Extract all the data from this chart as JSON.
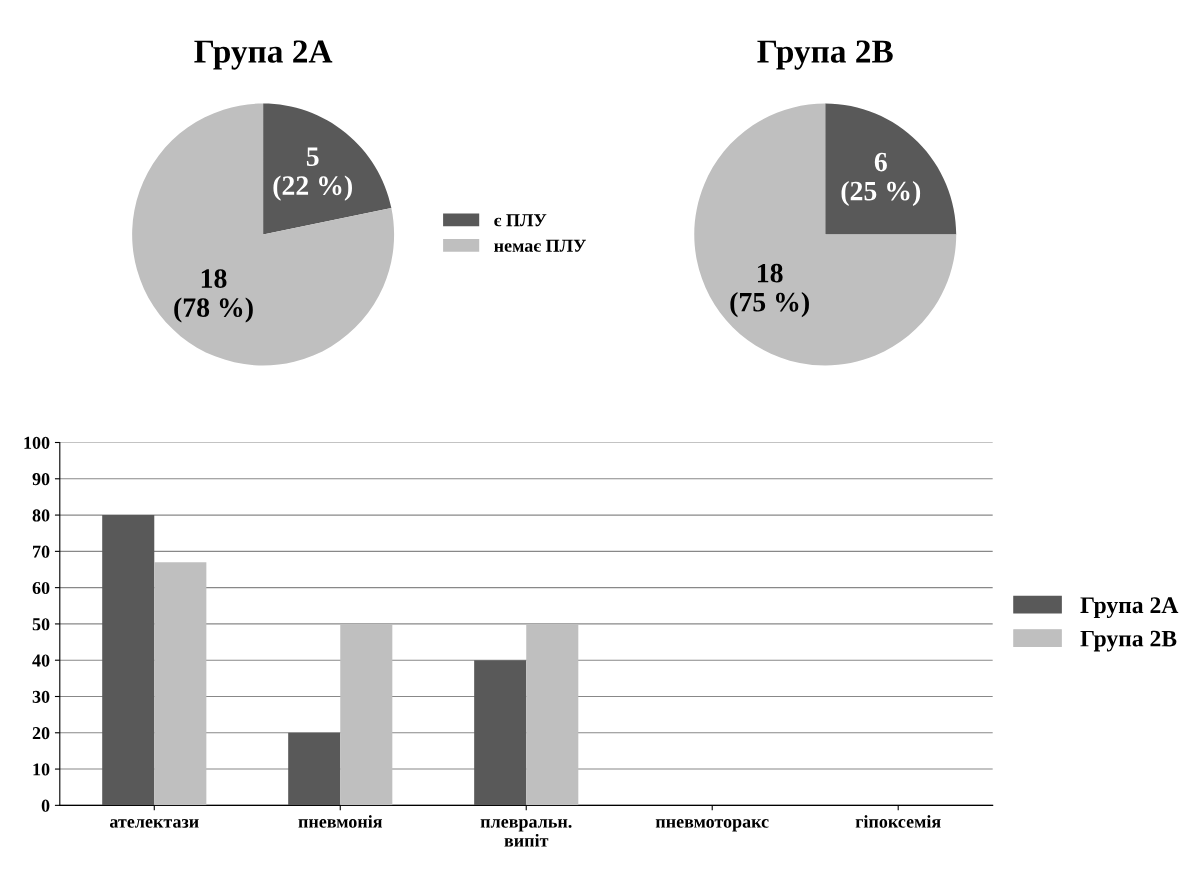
{
  "chart_data": [
    {
      "type": "pie",
      "title": "Група 2А",
      "categories": [
        "є ПЛУ",
        "немає ПЛУ"
      ],
      "values": [
        5,
        18
      ],
      "colors": [
        "#595959",
        "#bfbfbf"
      ],
      "value_labels": [
        "5\n(22 %)",
        "18\n(78 %)"
      ],
      "legend": "right"
    },
    {
      "type": "pie",
      "title": "Група 2В",
      "categories": [
        null,
        null
      ],
      "values": [
        6,
        18
      ],
      "colors": [
        "#595959",
        "#bfbfbf"
      ],
      "value_labels": [
        "6\n(25 %)",
        "18\n(75 %)"
      ]
    },
    {
      "type": "bar",
      "categories": [
        "ателектази",
        "пневмонія",
        "плевральн.\nвипіт",
        "пневмоторакс",
        "гіпоксемія"
      ],
      "series": [
        {
          "name": "Група 2А",
          "color": "#595959",
          "values": [
            80,
            20,
            40,
            0,
            0
          ]
        },
        {
          "name": "Група 2В",
          "color": "#bfbfbf",
          "values": [
            67,
            50,
            50,
            0,
            0
          ]
        }
      ],
      "ylim": [
        0,
        100
      ],
      "yticks": [
        0,
        10,
        20,
        30,
        40,
        50,
        60,
        70,
        80,
        90,
        100
      ],
      "grid": "y",
      "legend": "right"
    }
  ]
}
